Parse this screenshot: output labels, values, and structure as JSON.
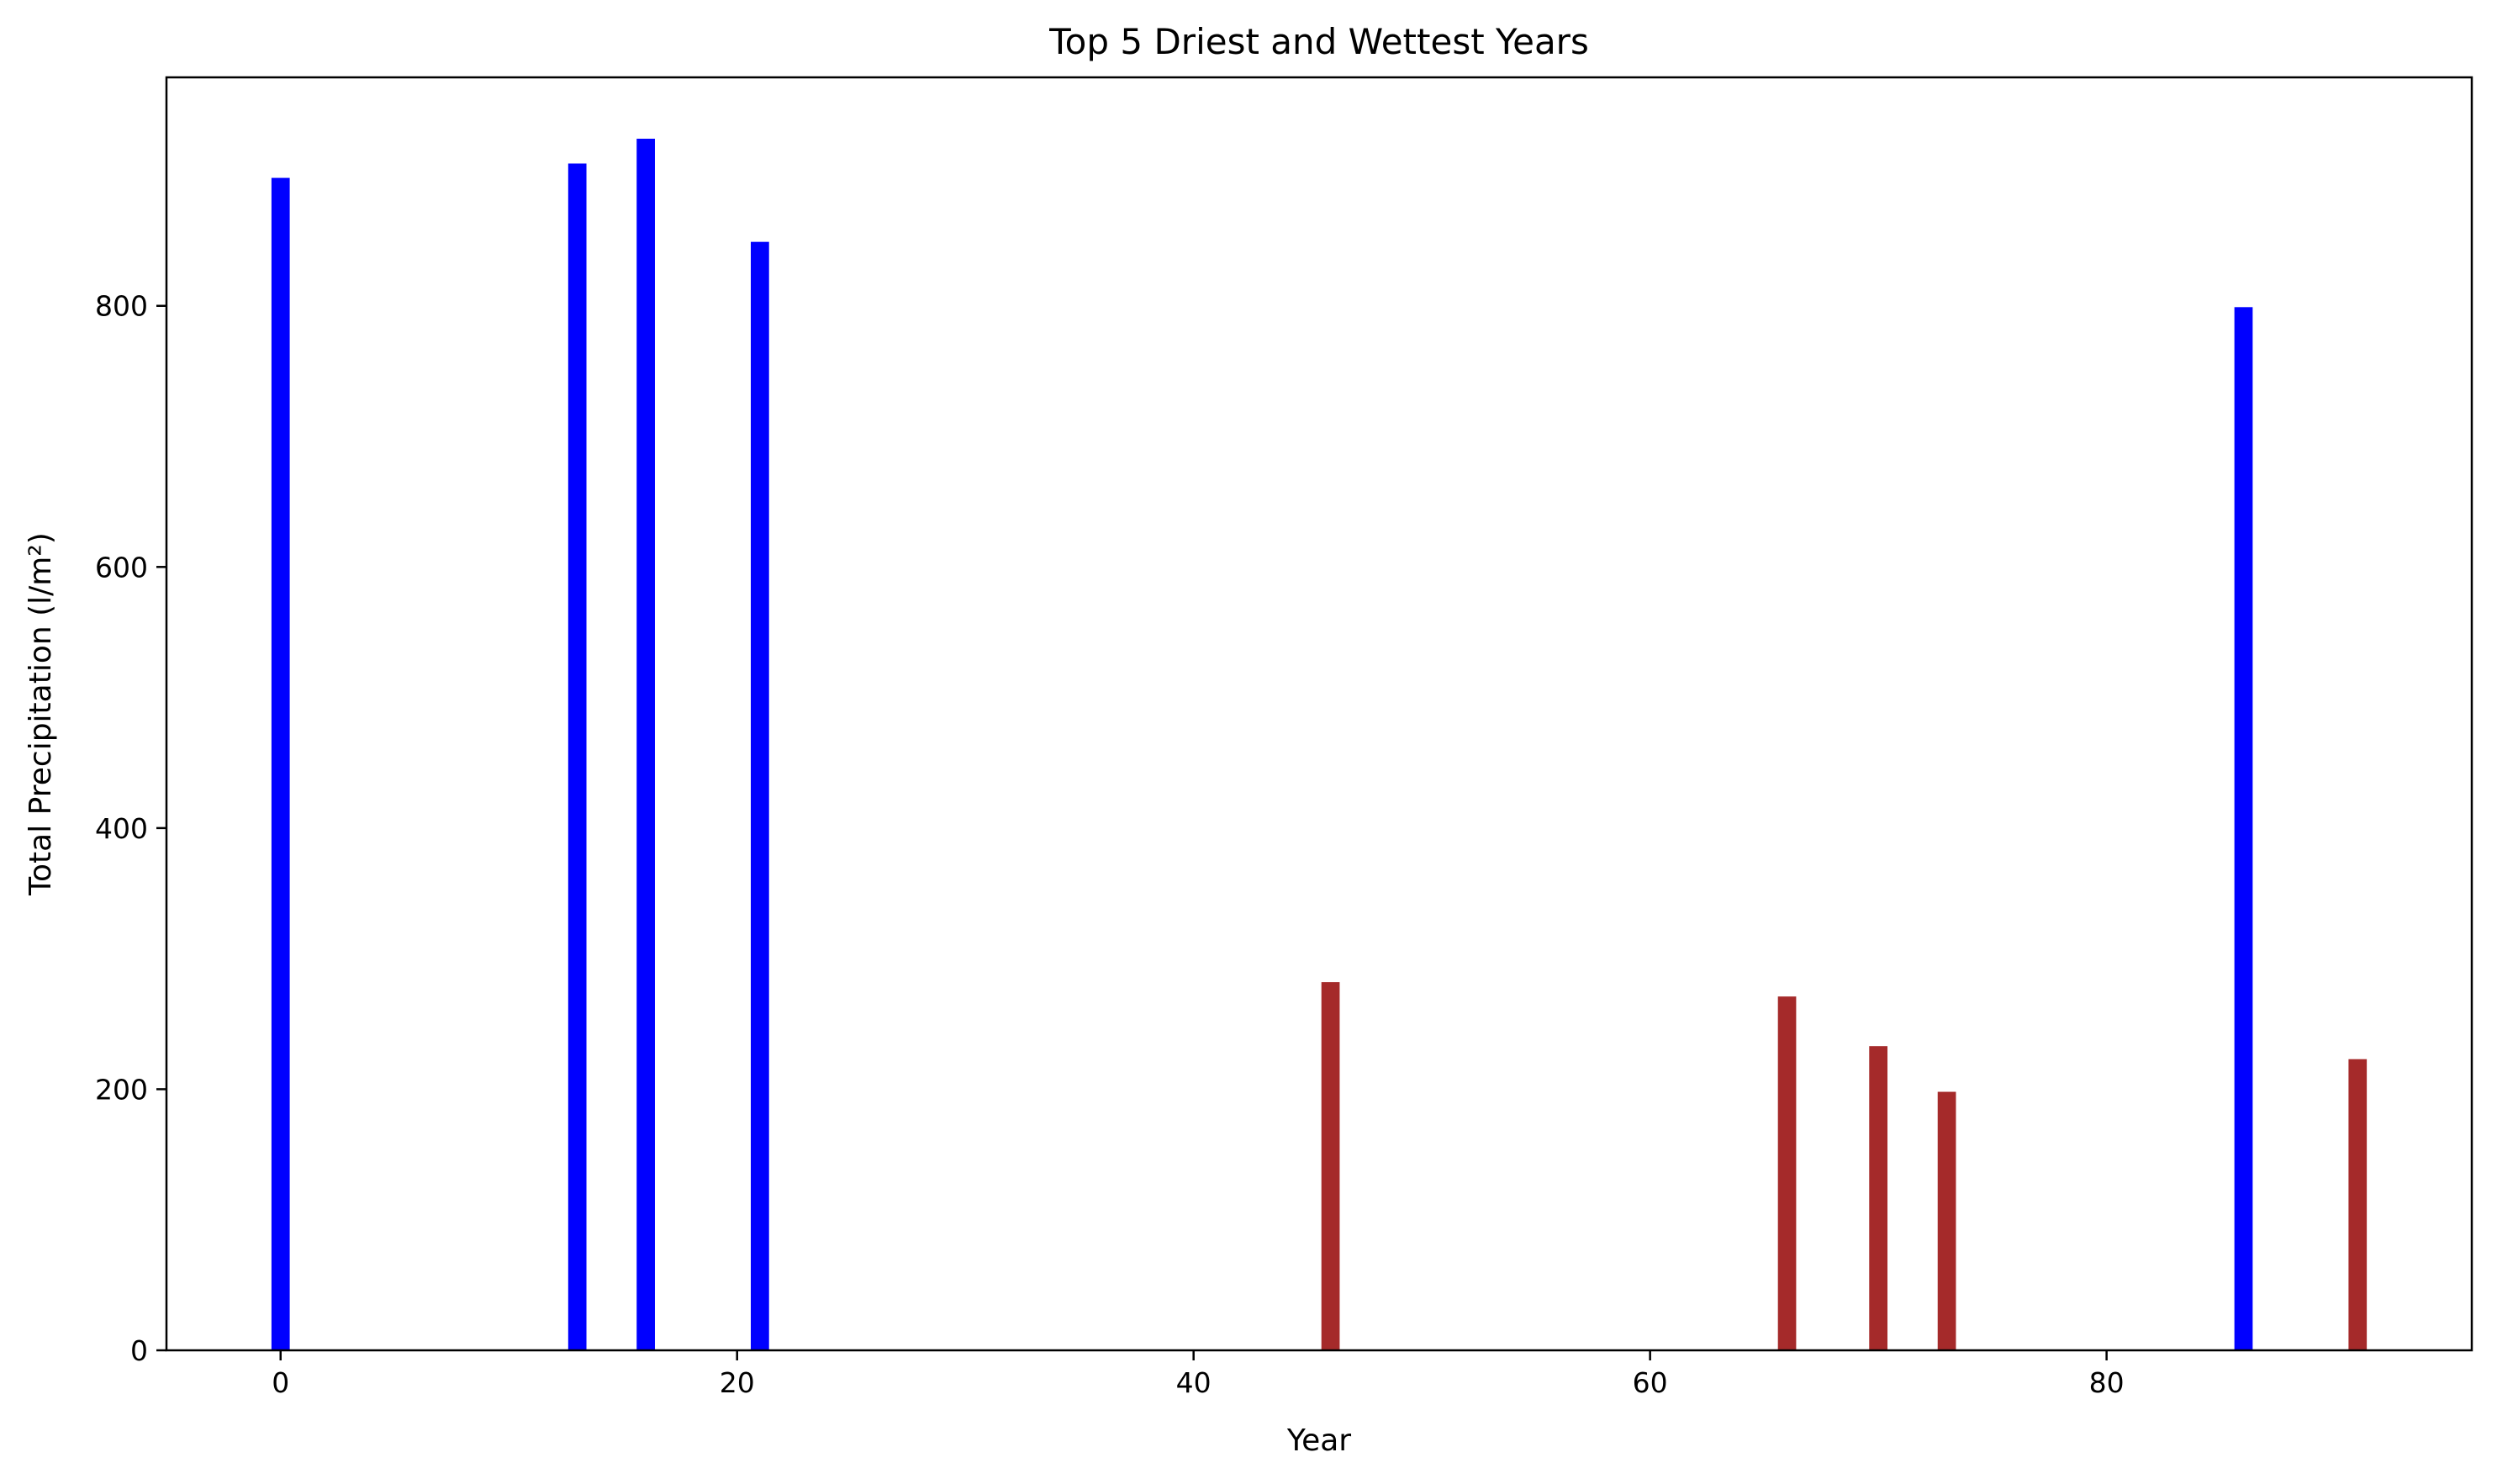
{
  "chart_data": {
    "type": "bar",
    "title": "Top 5 Driest and Wettest Years",
    "xlabel": "Year",
    "ylabel": "Total Precipitation (l/m²)",
    "xlim": [
      -5,
      96
    ],
    "ylim": [
      0,
      975
    ],
    "xticks": [
      0,
      20,
      40,
      60,
      80
    ],
    "yticks": [
      0,
      200,
      400,
      600,
      800
    ],
    "grid": false,
    "bar_width_years": 0.8,
    "colors": {
      "wettest": "#0000ff",
      "driest": "#a52a2a"
    },
    "series": [
      {
        "group": "wettest",
        "x": [
          0,
          13,
          16,
          21,
          86
        ],
        "values": [
          898,
          909,
          928,
          849,
          799
        ]
      },
      {
        "group": "driest",
        "x": [
          46,
          66,
          70,
          73,
          91
        ],
        "values": [
          282,
          271,
          233,
          198,
          223
        ]
      }
    ]
  }
}
